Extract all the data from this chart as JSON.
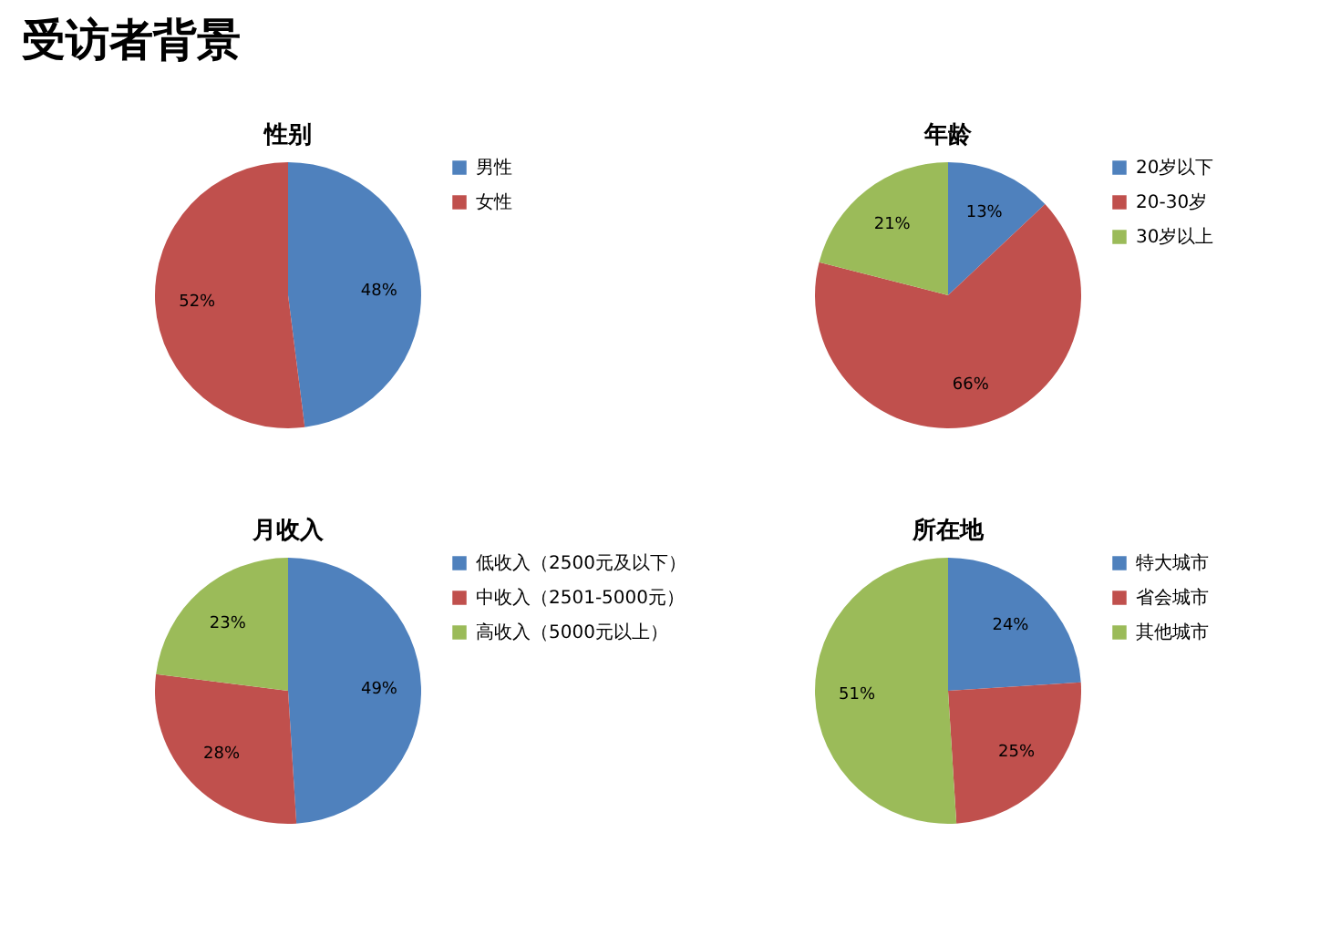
{
  "chart_data": [
    {
      "type": "pie",
      "title": "性别",
      "annotations": [
        "受访者背景"
      ],
      "categories": [
        "男性",
        "女性"
      ],
      "values": [
        48,
        52
      ],
      "colors": [
        "#4f81bd",
        "#c0504d"
      ],
      "value_labels": [
        "48%",
        "52%"
      ],
      "legend": "right"
    },
    {
      "type": "pie",
      "title": "年龄",
      "categories": [
        "20岁以下",
        "20-30岁",
        "30岁以上"
      ],
      "values": [
        13,
        66,
        21
      ],
      "colors": [
        "#4f81bd",
        "#c0504d",
        "#9bbb59"
      ],
      "value_labels": [
        "13%",
        "66%",
        "21%"
      ],
      "legend": "right"
    },
    {
      "type": "pie",
      "title": "月收入",
      "categories": [
        "低收入（2500元及以下）",
        "中收入（2501-5000元）",
        "高收入（5000元以上）"
      ],
      "values": [
        49,
        28,
        23
      ],
      "colors": [
        "#4f81bd",
        "#c0504d",
        "#9bbb59"
      ],
      "value_labels": [
        "49%",
        "28%",
        "23%"
      ],
      "legend": "right"
    },
    {
      "type": "pie",
      "title": "所在地",
      "categories": [
        "特大城市",
        "省会城市",
        "其他城市"
      ],
      "values": [
        24,
        25,
        51
      ],
      "colors": [
        "#4f81bd",
        "#c0504d",
        "#9bbb59"
      ],
      "value_labels": [
        "24%",
        "25%",
        "51%"
      ],
      "legend": "right"
    }
  ]
}
